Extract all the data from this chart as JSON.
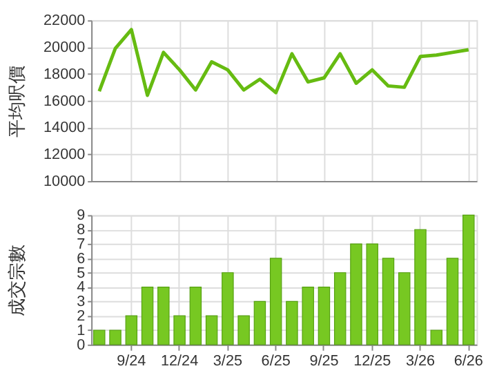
{
  "chart_data": [
    {
      "type": "line",
      "ylabel": "平均呎價",
      "categories": [
        null,
        null,
        null,
        null,
        null,
        null,
        null,
        null,
        null,
        null,
        null,
        null,
        null,
        null,
        null,
        null,
        null,
        null,
        null,
        null,
        null,
        null,
        null,
        null
      ],
      "series": [
        {
          "color": "#66bb11",
          "values": [
            16700,
            19900,
            21300,
            16400,
            19600,
            18300,
            16800,
            18900,
            18300,
            16800,
            17600,
            16600,
            19500,
            17400,
            17700,
            19500,
            17300,
            18300,
            17100,
            17000,
            19300,
            19400,
            19600,
            19800
          ]
        }
      ],
      "ylim": [
        10000,
        22000
      ],
      "yticks": [
        10000,
        12000,
        14000,
        16000,
        18000,
        20000,
        22000
      ],
      "grid": true,
      "tick_labels": "y",
      "marker": "none",
      "line_style": "solid"
    },
    {
      "type": "bar",
      "ylabel": "成交宗數",
      "categories": [
        null,
        null,
        "9/24",
        null,
        null,
        "12/24",
        null,
        null,
        "3/25",
        null,
        null,
        "6/25",
        null,
        null,
        "9/25",
        null,
        null,
        "12/25",
        null,
        null,
        "3/26",
        null,
        null,
        "6/26"
      ],
      "series": [
        {
          "color": "#77c822",
          "values": [
            1,
            1,
            2,
            4,
            4,
            2,
            4,
            2,
            5,
            2,
            3,
            6,
            3,
            4,
            4,
            5,
            7,
            7,
            6,
            5,
            8,
            1,
            6,
            9
          ]
        }
      ],
      "ylim": [
        0,
        9
      ],
      "yticks": [
        0,
        1,
        2,
        3,
        4,
        5,
        6,
        7,
        8,
        9
      ],
      "grid": true
    }
  ]
}
